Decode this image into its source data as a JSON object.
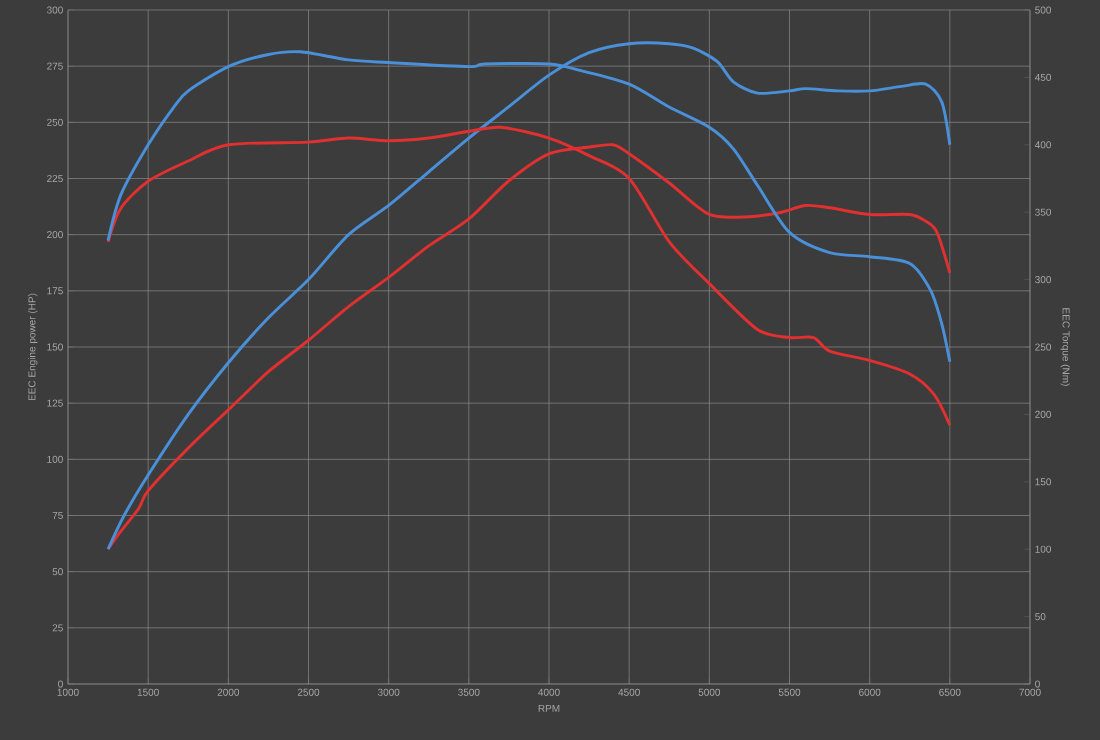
{
  "chart_data": {
    "type": "line",
    "xlabel": "RPM",
    "ylabel": "EEC Engine power (HP)",
    "y2label": "EEC Torque (Nm)",
    "xlim": [
      1000,
      7000
    ],
    "xticks": [
      1000,
      1500,
      2000,
      2500,
      3000,
      3500,
      4000,
      4500,
      5000,
      5500,
      6000,
      6500,
      7000
    ],
    "ylim": [
      0,
      300
    ],
    "yticks": [
      0,
      25,
      50,
      75,
      100,
      125,
      150,
      175,
      200,
      225,
      250,
      275,
      300
    ],
    "y2lim": [
      0,
      500
    ],
    "y2ticks": [
      0,
      50,
      100,
      150,
      200,
      250,
      300,
      350,
      400,
      450,
      500
    ],
    "grid": true,
    "series": [
      {
        "color": "#e03030",
        "x": [
          1250,
          1330,
          1440,
          1500,
          1750,
          2000,
          2250,
          2500,
          2750,
          3000,
          3250,
          3500,
          3750,
          4000,
          4250,
          4400,
          4500,
          4750,
          5000,
          5250,
          5450,
          5600,
          5750,
          6000,
          6250,
          6350,
          6420,
          6500
        ],
        "values": [
          60,
          68,
          78,
          86,
          105,
          122,
          139,
          153,
          168,
          181,
          195,
          207,
          224,
          236,
          239,
          240,
          236,
          223,
          209,
          208,
          210,
          213,
          212,
          209,
          209,
          206,
          201,
          183
        ]
      },
      {
        "color": "#4a90d9",
        "x": [
          1250,
          1350,
          1500,
          1750,
          2000,
          2250,
          2500,
          2750,
          3000,
          3250,
          3500,
          3750,
          4000,
          4250,
          4500,
          4750,
          4900,
          5050,
          5150,
          5300,
          5500,
          5600,
          5800,
          6000,
          6200,
          6350,
          6450,
          6500
        ],
        "values": [
          60,
          75,
          93,
          120,
          143,
          163,
          180,
          200,
          213,
          228,
          243,
          257,
          271,
          281,
          285,
          285,
          283,
          277,
          268,
          263,
          264,
          265,
          264,
          264,
          266,
          267,
          259,
          240
        ]
      },
      {
        "color": "#e03030",
        "axis": "y2",
        "x": [
          1250,
          1330,
          1500,
          1750,
          2000,
          2500,
          2750,
          3000,
          3250,
          3500,
          3700,
          4000,
          4250,
          4500,
          4750,
          5000,
          5300,
          5500,
          5650,
          5750,
          6000,
          6250,
          6400,
          6500
        ],
        "values": [
          328,
          353,
          373,
          388,
          400,
          402,
          405,
          403,
          405,
          410,
          413,
          405,
          392,
          375,
          328,
          297,
          263,
          257,
          257,
          247,
          240,
          230,
          215,
          192
        ]
      },
      {
        "color": "#4a90d9",
        "axis": "y2",
        "x": [
          1250,
          1330,
          1500,
          1660,
          1750,
          2000,
          2250,
          2450,
          2750,
          3000,
          3500,
          3600,
          4000,
          4200,
          4500,
          4750,
          5000,
          5150,
          5300,
          5500,
          5750,
          6000,
          6250,
          6380,
          6450,
          6500
        ],
        "values": [
          329,
          363,
          400,
          428,
          440,
          458,
          467,
          469,
          463,
          461,
          458,
          460,
          460,
          455,
          445,
          428,
          413,
          397,
          370,
          335,
          320,
          317,
          312,
          292,
          267,
          239
        ]
      }
    ]
  }
}
